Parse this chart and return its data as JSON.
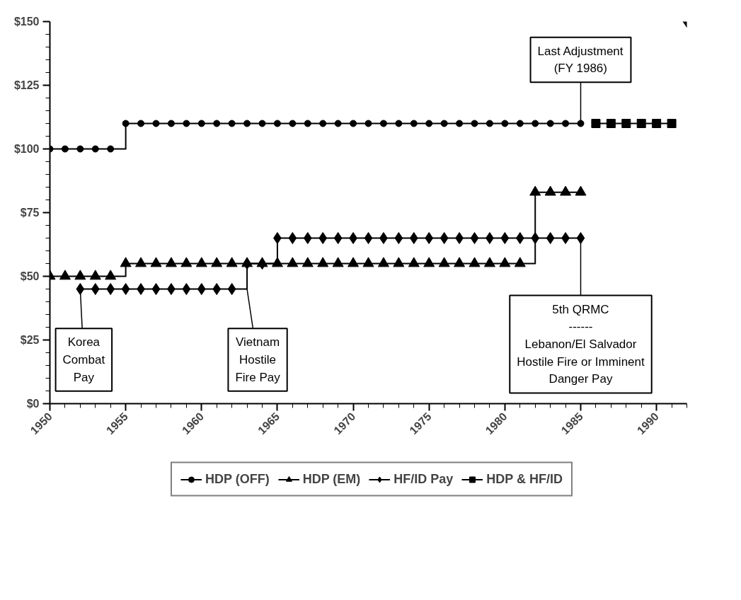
{
  "chart_data": {
    "type": "step",
    "xlim": [
      1950,
      1992
    ],
    "ylim": [
      0,
      150
    ],
    "xticks": [
      1950,
      1955,
      1960,
      1965,
      1970,
      1975,
      1980,
      1985,
      1990
    ],
    "yticks": [
      {
        "value": 0,
        "label": "$0"
      },
      {
        "value": 25,
        "label": "$25"
      },
      {
        "value": 50,
        "label": "$50"
      },
      {
        "value": 75,
        "label": "$75"
      },
      {
        "value": 100,
        "label": "$100"
      },
      {
        "value": 125,
        "label": "$125"
      },
      {
        "value": 150,
        "label": "$150"
      }
    ],
    "grid": false,
    "legend": "bottom",
    "series": [
      {
        "name": "HDP (OFF)",
        "color": "#000000",
        "marker": "circle",
        "x": [
          1950,
          1951,
          1952,
          1953,
          1954,
          1955,
          1956,
          1957,
          1958,
          1959,
          1960,
          1961,
          1962,
          1963,
          1964,
          1965,
          1966,
          1967,
          1968,
          1969,
          1970,
          1971,
          1972,
          1973,
          1974,
          1975,
          1976,
          1977,
          1978,
          1979,
          1980,
          1981,
          1982,
          1983,
          1984,
          1985
        ],
        "values": [
          100,
          100,
          100,
          100,
          100,
          110,
          110,
          110,
          110,
          110,
          110,
          110,
          110,
          110,
          110,
          110,
          110,
          110,
          110,
          110,
          110,
          110,
          110,
          110,
          110,
          110,
          110,
          110,
          110,
          110,
          110,
          110,
          110,
          110,
          110,
          110
        ]
      },
      {
        "name": "HDP (EM)",
        "color": "#000000",
        "marker": "triangle",
        "x": [
          1950,
          1951,
          1952,
          1953,
          1954,
          1955,
          1956,
          1957,
          1958,
          1959,
          1960,
          1961,
          1962,
          1963,
          1964,
          1965,
          1966,
          1967,
          1968,
          1969,
          1970,
          1971,
          1972,
          1973,
          1974,
          1975,
          1976,
          1977,
          1978,
          1979,
          1980,
          1981,
          1982,
          1983,
          1984,
          1985
        ],
        "values": [
          50,
          50,
          50,
          50,
          50,
          55,
          55,
          55,
          55,
          55,
          55,
          55,
          55,
          55,
          55,
          55,
          55,
          55,
          55,
          55,
          55,
          55,
          55,
          55,
          55,
          55,
          55,
          55,
          55,
          55,
          55,
          55,
          83,
          83,
          83,
          83
        ]
      },
      {
        "name": "HF/ID Pay",
        "color": "#000000",
        "marker": "diamond",
        "x": [
          1952,
          1953,
          1954,
          1955,
          1956,
          1957,
          1958,
          1959,
          1960,
          1961,
          1962,
          1963,
          1964,
          1965,
          1966,
          1967,
          1968,
          1969,
          1970,
          1971,
          1972,
          1973,
          1974,
          1975,
          1976,
          1977,
          1978,
          1979,
          1980,
          1981,
          1982,
          1983,
          1984,
          1985,
          1986,
          1987,
          1988,
          1989,
          1990,
          1991,
          1992
        ],
        "values": [
          45,
          45,
          45,
          45,
          45,
          45,
          45,
          45,
          45,
          45,
          45,
          55,
          55,
          65,
          65,
          65,
          65,
          65,
          65,
          65,
          65,
          65,
          65,
          65,
          65,
          65,
          65,
          65,
          65,
          65,
          65,
          65,
          65,
          65,
          null,
          null,
          null,
          null,
          null,
          null,
          150
        ]
      },
      {
        "name": "HDP & HF/ID",
        "color": "#000000",
        "marker": "square",
        "x": [
          1986,
          1987,
          1988,
          1989,
          1990,
          1991
        ],
        "values": [
          110,
          110,
          110,
          110,
          110,
          110
        ]
      }
    ],
    "annotations": [
      {
        "text": "Korea\nCombat\nPay",
        "x": 1952,
        "y": 45
      },
      {
        "text": "Vietnam\nHostile\nFire Pay",
        "x": 1963,
        "y": 45
      },
      {
        "text": "Last Adjustment\n(FY 1986)",
        "x": 1985,
        "y": 110
      },
      {
        "text": "5th QRMC\n------\nLebanon/El Salvador\nHostile Fire or Imminent\nDanger Pay",
        "x": 1985,
        "y": 65
      }
    ]
  }
}
